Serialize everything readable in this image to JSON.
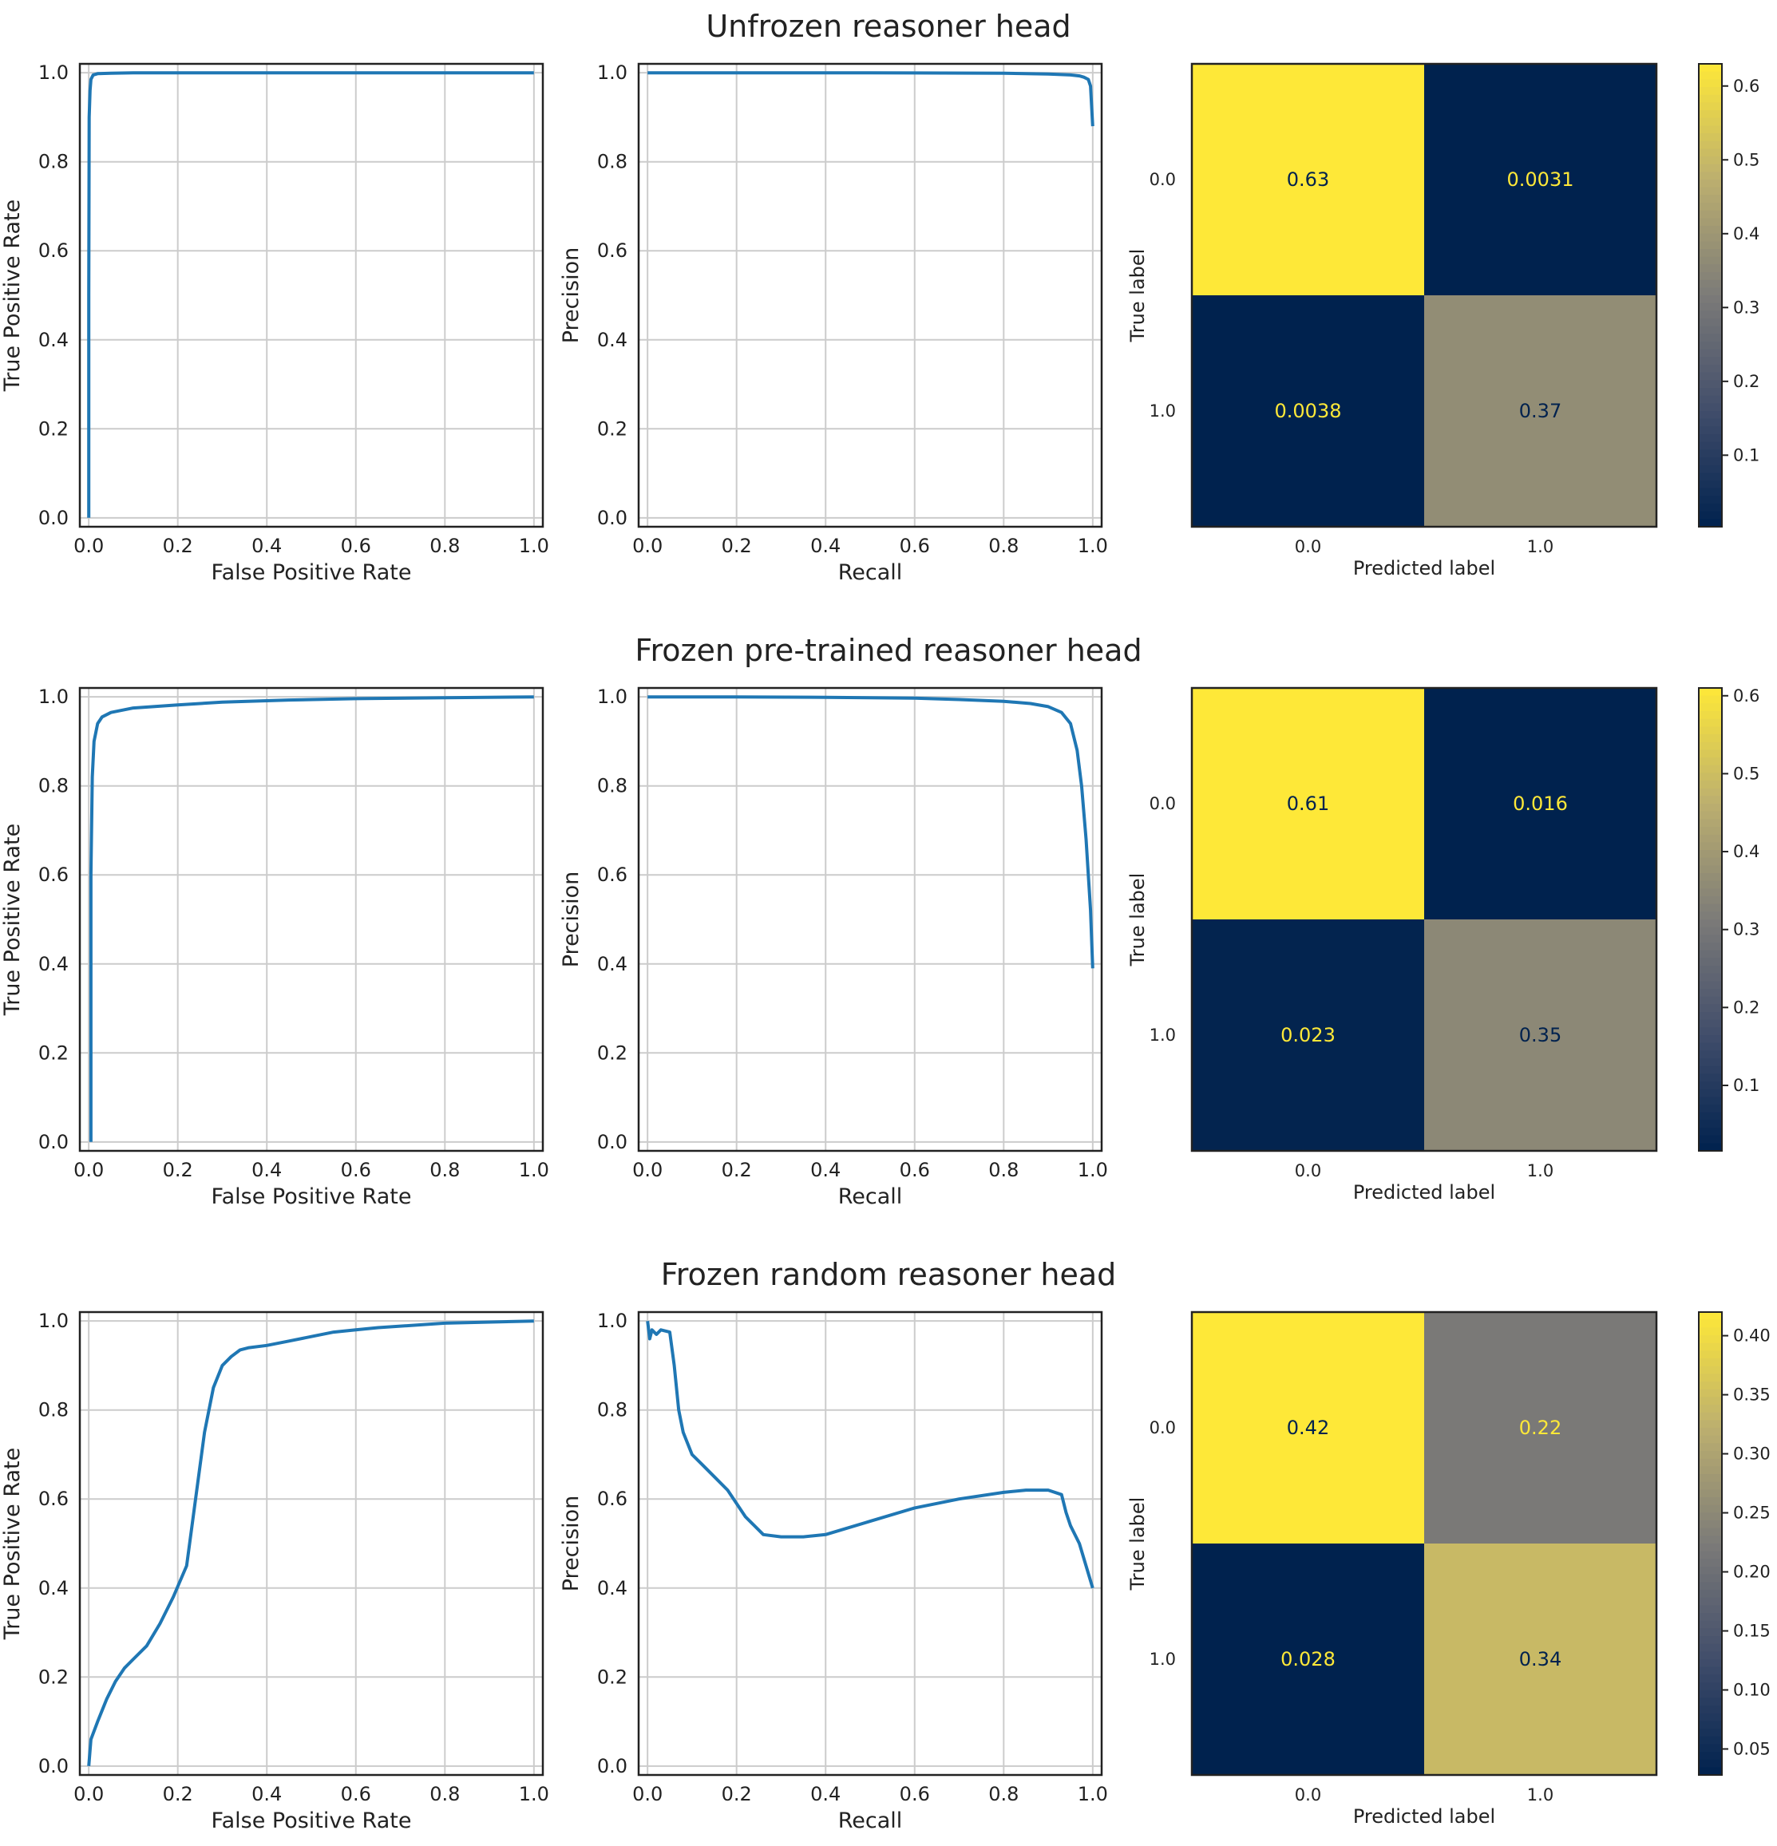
{
  "chart_data": [
    {
      "title": "Unfrozen reasoner head",
      "roc": {
        "type": "line",
        "xlabel": "False Positive Rate",
        "ylabel": "True Positive Rate",
        "xlim": [
          0,
          1
        ],
        "ylim": [
          0,
          1
        ],
        "ticks": [
          "0.0",
          "0.2",
          "0.4",
          "0.6",
          "0.8",
          "1.0"
        ],
        "grid": true,
        "color": "#1f77b4",
        "x": [
          0,
          0,
          0.001,
          0.003,
          0.005,
          0.01,
          0.02,
          0.05,
          0.1,
          0.5,
          1.0
        ],
        "y": [
          0,
          0.5,
          0.9,
          0.96,
          0.985,
          0.995,
          0.998,
          0.999,
          1.0,
          1.0,
          1.0
        ]
      },
      "pr": {
        "type": "line",
        "xlabel": "Recall",
        "ylabel": "Precision",
        "xlim": [
          0,
          1
        ],
        "ylim": [
          0,
          1
        ],
        "ticks": [
          "0.0",
          "0.2",
          "0.4",
          "0.6",
          "0.8",
          "1.0"
        ],
        "grid": true,
        "color": "#1f77b4",
        "x": [
          0,
          0.2,
          0.5,
          0.8,
          0.9,
          0.95,
          0.97,
          0.98,
          0.99,
          0.995,
          1.0
        ],
        "y": [
          1.0,
          1.0,
          1.0,
          0.999,
          0.997,
          0.995,
          0.993,
          0.99,
          0.985,
          0.97,
          0.88
        ]
      },
      "confusion": {
        "type": "heatmap",
        "xlabel": "Predicted label",
        "ylabel": "True label",
        "labels": [
          "0.0",
          "1.0"
        ],
        "values": [
          [
            "0.63",
            "0.0031"
          ],
          [
            "0.0038",
            "0.37"
          ]
        ],
        "numeric": [
          [
            0.63,
            0.0031
          ],
          [
            0.0038,
            0.37
          ]
        ],
        "vmin": 0.0031,
        "vmax": 0.63,
        "colorbar_ticks": [
          "0.1",
          "0.2",
          "0.3",
          "0.4",
          "0.5",
          "0.6"
        ],
        "colormap": "cividis"
      }
    },
    {
      "title": "Frozen pre-trained reasoner head",
      "roc": {
        "type": "line",
        "xlabel": "False Positive Rate",
        "ylabel": "True Positive Rate",
        "xlim": [
          0,
          1
        ],
        "ylim": [
          0,
          1
        ],
        "ticks": [
          "0.0",
          "0.2",
          "0.4",
          "0.6",
          "0.8",
          "1.0"
        ],
        "grid": true,
        "color": "#1f77b4",
        "x": [
          0.005,
          0.005,
          0.008,
          0.012,
          0.02,
          0.03,
          0.05,
          0.1,
          0.2,
          0.3,
          0.45,
          0.6,
          0.8,
          1.0
        ],
        "y": [
          0.0,
          0.6,
          0.82,
          0.9,
          0.94,
          0.955,
          0.965,
          0.975,
          0.982,
          0.988,
          0.993,
          0.996,
          0.998,
          1.0
        ]
      },
      "pr": {
        "type": "line",
        "xlabel": "Recall",
        "ylabel": "Precision",
        "xlim": [
          0,
          1
        ],
        "ylim": [
          0,
          1
        ],
        "ticks": [
          "0.0",
          "0.2",
          "0.4",
          "0.6",
          "0.8",
          "1.0"
        ],
        "grid": true,
        "color": "#1f77b4",
        "x": [
          0,
          0.2,
          0.4,
          0.6,
          0.7,
          0.8,
          0.86,
          0.9,
          0.93,
          0.95,
          0.965,
          0.975,
          0.985,
          0.99,
          0.995,
          1.0
        ],
        "y": [
          1.0,
          1.0,
          0.999,
          0.997,
          0.994,
          0.99,
          0.985,
          0.978,
          0.965,
          0.94,
          0.88,
          0.8,
          0.68,
          0.6,
          0.52,
          0.39
        ]
      },
      "confusion": {
        "type": "heatmap",
        "xlabel": "Predicted label",
        "ylabel": "True label",
        "labels": [
          "0.0",
          "1.0"
        ],
        "values": [
          [
            "0.61",
            "0.016"
          ],
          [
            "0.023",
            "0.35"
          ]
        ],
        "numeric": [
          [
            0.61,
            0.016
          ],
          [
            0.023,
            0.35
          ]
        ],
        "vmin": 0.016,
        "vmax": 0.61,
        "colorbar_ticks": [
          "0.1",
          "0.2",
          "0.3",
          "0.4",
          "0.5",
          "0.6"
        ],
        "colormap": "cividis"
      }
    },
    {
      "title": "Frozen random reasoner head",
      "roc": {
        "type": "line",
        "xlabel": "False Positive Rate",
        "ylabel": "True Positive Rate",
        "xlim": [
          0,
          1
        ],
        "ylim": [
          0,
          1
        ],
        "ticks": [
          "0.0",
          "0.2",
          "0.4",
          "0.6",
          "0.8",
          "1.0"
        ],
        "grid": true,
        "color": "#1f77b4",
        "x": [
          0,
          0.005,
          0.02,
          0.04,
          0.06,
          0.08,
          0.1,
          0.13,
          0.16,
          0.19,
          0.22,
          0.24,
          0.26,
          0.28,
          0.3,
          0.32,
          0.34,
          0.36,
          0.4,
          0.45,
          0.5,
          0.55,
          0.6,
          0.65,
          0.8,
          1.0
        ],
        "y": [
          0.0,
          0.06,
          0.1,
          0.15,
          0.19,
          0.22,
          0.24,
          0.27,
          0.32,
          0.38,
          0.45,
          0.6,
          0.75,
          0.85,
          0.9,
          0.92,
          0.935,
          0.94,
          0.945,
          0.955,
          0.965,
          0.975,
          0.98,
          0.985,
          0.995,
          1.0
        ]
      },
      "pr": {
        "type": "line",
        "xlabel": "Recall",
        "ylabel": "Precision",
        "xlim": [
          0,
          1
        ],
        "ylim": [
          0,
          1
        ],
        "ticks": [
          "0.0",
          "0.2",
          "0.4",
          "0.6",
          "0.8",
          "1.0"
        ],
        "grid": true,
        "color": "#1f77b4",
        "x": [
          0,
          0.005,
          0.01,
          0.02,
          0.03,
          0.05,
          0.06,
          0.07,
          0.08,
          0.1,
          0.12,
          0.15,
          0.18,
          0.22,
          0.26,
          0.3,
          0.35,
          0.4,
          0.5,
          0.6,
          0.7,
          0.8,
          0.85,
          0.9,
          0.93,
          0.94,
          0.95,
          0.97,
          1.0
        ],
        "y": [
          1.0,
          0.96,
          0.98,
          0.97,
          0.98,
          0.975,
          0.9,
          0.8,
          0.75,
          0.7,
          0.68,
          0.65,
          0.62,
          0.56,
          0.52,
          0.515,
          0.515,
          0.52,
          0.55,
          0.58,
          0.6,
          0.615,
          0.62,
          0.62,
          0.61,
          0.57,
          0.54,
          0.5,
          0.4
        ]
      },
      "confusion": {
        "type": "heatmap",
        "xlabel": "Predicted label",
        "ylabel": "True label",
        "labels": [
          "0.0",
          "1.0"
        ],
        "values": [
          [
            "0.42",
            "0.22"
          ],
          [
            "0.028",
            "0.34"
          ]
        ],
        "numeric": [
          [
            0.42,
            0.22
          ],
          [
            0.028,
            0.34
          ]
        ],
        "vmin": 0.028,
        "vmax": 0.42,
        "colorbar_ticks": [
          "0.05",
          "0.10",
          "0.15",
          "0.20",
          "0.25",
          "0.30",
          "0.35",
          "0.40"
        ],
        "colormap": "cividis"
      }
    }
  ]
}
